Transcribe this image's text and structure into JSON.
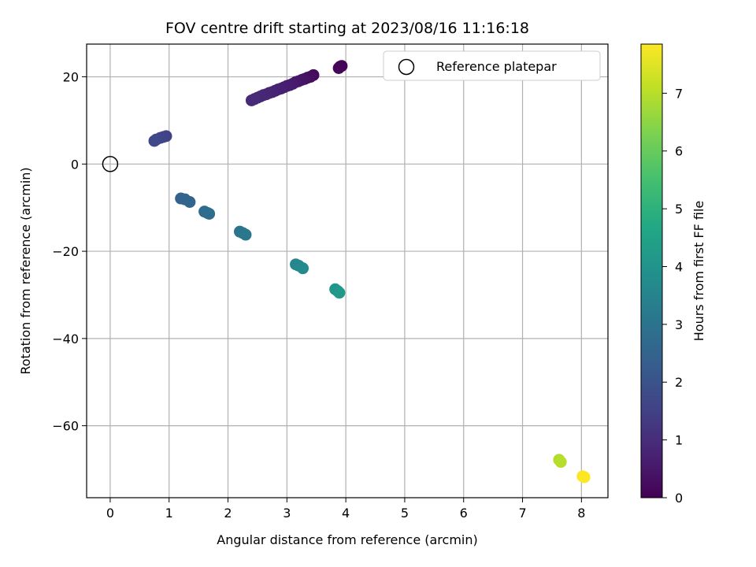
{
  "chart_data": {
    "type": "scatter",
    "title": "FOV centre drift starting at 2023/08/16 11:16:18",
    "xlabel": "Angular distance from reference (arcmin)",
    "ylabel": "Rotation from reference (arcmin)",
    "xlim": [
      -0.4,
      8.45
    ],
    "ylim": [
      -76.5,
      27.5
    ],
    "xticks": [
      0,
      1,
      2,
      3,
      4,
      5,
      6,
      7,
      8
    ],
    "xtick_labels": [
      "0",
      "1",
      "2",
      "3",
      "4",
      "5",
      "6",
      "7",
      "8"
    ],
    "yticks": [
      20,
      0,
      -20,
      -40,
      -60
    ],
    "ytick_labels": [
      "20",
      "0",
      "−20",
      "−40",
      "−60"
    ],
    "grid": true,
    "legend": {
      "position": "upper-right",
      "entries": [
        {
          "label": "Reference platepar",
          "marker": "open-circle",
          "color": "#000000"
        }
      ]
    },
    "reference_point": {
      "x": 0,
      "y": 0
    },
    "colorbar": {
      "label": "Hours from first FF file",
      "colormap": "viridis",
      "range": [
        0,
        7.85
      ],
      "ticks": [
        0,
        1,
        2,
        3,
        4,
        5,
        6,
        7
      ],
      "tick_labels": [
        "0",
        "1",
        "2",
        "3",
        "4",
        "5",
        "6",
        "7"
      ]
    },
    "points": [
      {
        "x": 3.9,
        "y": 22.3,
        "c": 0.0
      },
      {
        "x": 3.93,
        "y": 22.5,
        "c": 0.05
      },
      {
        "x": 3.88,
        "y": 22.0,
        "c": 0.1
      },
      {
        "x": 3.45,
        "y": 20.4,
        "c": 0.2
      },
      {
        "x": 3.4,
        "y": 20.0,
        "c": 0.25
      },
      {
        "x": 3.35,
        "y": 19.8,
        "c": 0.3
      },
      {
        "x": 3.3,
        "y": 19.5,
        "c": 0.35
      },
      {
        "x": 3.25,
        "y": 19.3,
        "c": 0.4
      },
      {
        "x": 3.2,
        "y": 19.0,
        "c": 0.45
      },
      {
        "x": 3.15,
        "y": 18.8,
        "c": 0.5
      },
      {
        "x": 3.1,
        "y": 18.4,
        "c": 0.55
      },
      {
        "x": 3.05,
        "y": 18.1,
        "c": 0.6
      },
      {
        "x": 3.0,
        "y": 17.9,
        "c": 0.62
      },
      {
        "x": 2.95,
        "y": 17.6,
        "c": 0.65
      },
      {
        "x": 2.9,
        "y": 17.3,
        "c": 0.68
      },
      {
        "x": 2.85,
        "y": 17.1,
        "c": 0.7
      },
      {
        "x": 2.8,
        "y": 16.8,
        "c": 0.72
      },
      {
        "x": 2.75,
        "y": 16.5,
        "c": 0.75
      },
      {
        "x": 2.7,
        "y": 16.3,
        "c": 0.78
      },
      {
        "x": 2.65,
        "y": 16.0,
        "c": 0.8
      },
      {
        "x": 2.6,
        "y": 15.8,
        "c": 0.83
      },
      {
        "x": 2.55,
        "y": 15.5,
        "c": 0.86
      },
      {
        "x": 2.5,
        "y": 15.2,
        "c": 0.89
      },
      {
        "x": 2.45,
        "y": 14.9,
        "c": 0.92
      },
      {
        "x": 2.4,
        "y": 14.6,
        "c": 0.95
      },
      {
        "x": 0.95,
        "y": 6.4,
        "c": 1.5
      },
      {
        "x": 0.9,
        "y": 6.2,
        "c": 1.55
      },
      {
        "x": 0.85,
        "y": 6.0,
        "c": 1.6
      },
      {
        "x": 0.78,
        "y": 5.6,
        "c": 1.65
      },
      {
        "x": 0.75,
        "y": 5.3,
        "c": 1.7
      },
      {
        "x": 1.2,
        "y": -7.9,
        "c": 2.45
      },
      {
        "x": 1.27,
        "y": -8.1,
        "c": 2.5
      },
      {
        "x": 1.35,
        "y": -8.7,
        "c": 2.55
      },
      {
        "x": 1.6,
        "y": -10.9,
        "c": 2.7
      },
      {
        "x": 1.65,
        "y": -11.2,
        "c": 2.75
      },
      {
        "x": 1.68,
        "y": -11.4,
        "c": 2.78
      },
      {
        "x": 2.2,
        "y": -15.5,
        "c": 3.0
      },
      {
        "x": 2.25,
        "y": -15.8,
        "c": 3.05
      },
      {
        "x": 2.3,
        "y": -16.2,
        "c": 3.1
      },
      {
        "x": 3.15,
        "y": -23.0,
        "c": 3.6
      },
      {
        "x": 3.2,
        "y": -23.3,
        "c": 3.65
      },
      {
        "x": 3.27,
        "y": -23.9,
        "c": 3.7
      },
      {
        "x": 3.82,
        "y": -28.7,
        "c": 4.05
      },
      {
        "x": 3.86,
        "y": -29.1,
        "c": 4.1
      },
      {
        "x": 3.89,
        "y": -29.5,
        "c": 4.15
      },
      {
        "x": 7.62,
        "y": -67.8,
        "c": 6.95
      },
      {
        "x": 7.65,
        "y": -68.3,
        "c": 7.0
      },
      {
        "x": 8.02,
        "y": -71.6,
        "c": 7.8
      },
      {
        "x": 8.05,
        "y": -71.8,
        "c": 7.85
      }
    ]
  }
}
